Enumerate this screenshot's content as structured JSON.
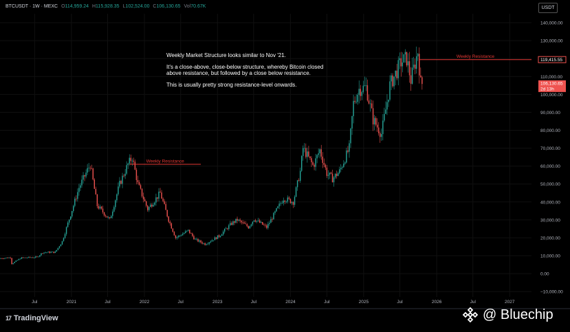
{
  "header": {
    "symbol": "BTCUSDT · 1W · MEXC",
    "o_label": "O",
    "o_value": "114,959.24",
    "h_label": "H",
    "h_value": "115,928.35",
    "l_label": "L",
    "l_value": "102,524.00",
    "c_label": "C",
    "c_value": "106,130.65",
    "vol_label": "Vol",
    "vol_value": "70.67K"
  },
  "currency_button": "USDT",
  "annotation": {
    "line1": "Weekly Market Structure looks similar to Nov '21.",
    "line2": "It's a close-above, close-below structure, whereby Bitcoin closed above resistance, but followed by a close below resistance.",
    "line3": "This is usually pretty strong resistance-level onwards."
  },
  "branding": {
    "logo": "17",
    "name": "TradingView"
  },
  "watermark": {
    "text": "@ Bluechip"
  },
  "colors": {
    "up": "#26a69a",
    "down": "#ef5350",
    "resistance": "#e53935",
    "background": "#000000"
  },
  "chart_data": {
    "type": "candlestick",
    "title": "",
    "y_ticks": [
      -10000,
      0,
      10000,
      20000,
      30000,
      40000,
      50000,
      60000,
      70000,
      80000,
      90000,
      100000,
      110000,
      120000,
      130000,
      140000
    ],
    "y_tick_labels": [
      "−10,000.00",
      "0.00",
      "10,000.00",
      "20,000.00",
      "30,000.00",
      "40,000.00",
      "50,000.00",
      "60,000.00",
      "70,000.00",
      "80,000.00",
      "90,000.00",
      "100,000.00",
      "110,000.00",
      "120,000.00",
      "130,000.00",
      "140,000.00"
    ],
    "ylim": [
      -13000,
      145000
    ],
    "x_ticks": [
      "2020-07-01",
      "2021-01-01",
      "2021-07-01",
      "2022-01-01",
      "2022-07-01",
      "2023-01-01",
      "2023-07-01",
      "2024-01-01",
      "2024-07-01",
      "2025-01-01",
      "2025-07-01",
      "2026-01-01",
      "2026-07-01",
      "2027-01-01"
    ],
    "x_tick_labels": [
      "Jul",
      "2021",
      "Jul",
      "2022",
      "Jul",
      "2023",
      "Jul",
      "2024",
      "Jul",
      "2025",
      "Jul",
      "2026",
      "Jul",
      "2027"
    ],
    "xlim": [
      "2020-01-10",
      "2027-04-20"
    ],
    "price_path": [
      [
        "2020-01-13",
        8500
      ],
      [
        "2020-03-09",
        9000
      ],
      [
        "2020-03-16",
        5500
      ],
      [
        "2020-05-01",
        8800
      ],
      [
        "2020-07-20",
        9200
      ],
      [
        "2020-08-17",
        11800
      ],
      [
        "2020-10-19",
        12000
      ],
      [
        "2020-11-23",
        18000
      ],
      [
        "2021-01-04",
        33000
      ],
      [
        "2021-02-15",
        48000
      ],
      [
        "2021-04-12",
        61000
      ],
      [
        "2021-05-17",
        38000
      ],
      [
        "2021-07-19",
        30000
      ],
      [
        "2021-09-06",
        50000
      ],
      [
        "2021-10-18",
        61000
      ],
      [
        "2021-11-08",
        65000
      ],
      [
        "2021-12-06",
        50000
      ],
      [
        "2022-01-24",
        36000
      ],
      [
        "2022-03-28",
        45000
      ],
      [
        "2022-05-09",
        30000
      ],
      [
        "2022-06-13",
        20000
      ],
      [
        "2022-08-15",
        24000
      ],
      [
        "2022-09-19",
        19000
      ],
      [
        "2022-11-07",
        16500
      ],
      [
        "2023-01-16",
        21000
      ],
      [
        "2023-03-20",
        28000
      ],
      [
        "2023-04-17",
        30000
      ],
      [
        "2023-06-12",
        26000
      ],
      [
        "2023-07-10",
        30500
      ],
      [
        "2023-09-11",
        25800
      ],
      [
        "2023-10-23",
        34000
      ],
      [
        "2023-12-04",
        42000
      ],
      [
        "2024-01-22",
        40000
      ],
      [
        "2024-02-26",
        57000
      ],
      [
        "2024-03-11",
        70000
      ],
      [
        "2024-05-01",
        60000
      ],
      [
        "2024-06-03",
        69000
      ],
      [
        "2024-07-08",
        56000
      ],
      [
        "2024-08-05",
        53000
      ],
      [
        "2024-09-09",
        57000
      ],
      [
        "2024-10-28",
        70000
      ],
      [
        "2024-11-18",
        95000
      ],
      [
        "2024-12-16",
        103000
      ],
      [
        "2025-01-20",
        104000
      ],
      [
        "2025-02-24",
        86000
      ],
      [
        "2025-04-07",
        78000
      ],
      [
        "2025-05-19",
        105000
      ],
      [
        "2025-07-14",
        118000
      ],
      [
        "2025-08-11",
        120000
      ],
      [
        "2025-09-01",
        108000
      ],
      [
        "2025-10-06",
        124000
      ],
      [
        "2025-10-20",
        106130
      ]
    ],
    "resistance_levels": [
      {
        "label": "Weekly Resistance",
        "value": 61000,
        "start": "2021-10-18",
        "end": "2022-10-10"
      },
      {
        "label": "Weekly Resistance",
        "value": 119415.55,
        "start": "2025-10-06",
        "end": "2027-04-20"
      }
    ],
    "price_labels": [
      {
        "text": "119,415.55",
        "value": 119415.55,
        "style": "outline"
      },
      {
        "text": "106,130.65",
        "value": 106130.65,
        "style": "filled",
        "sub": "2d 13h"
      }
    ]
  }
}
